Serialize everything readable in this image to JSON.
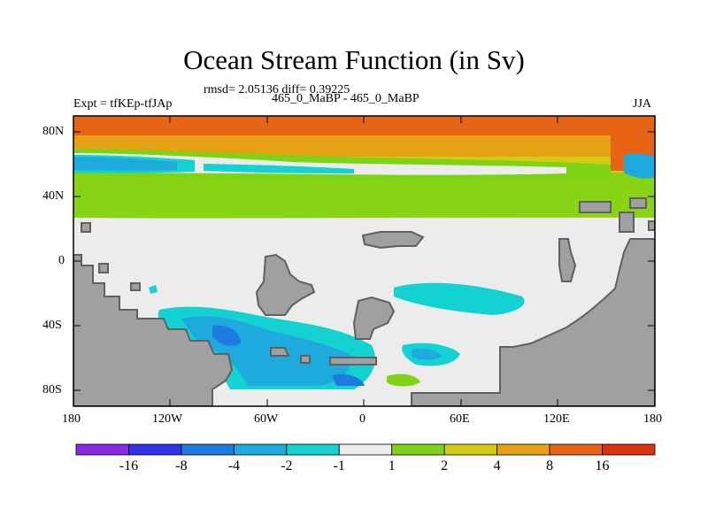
{
  "title": "Ocean Stream Function (in Sv)",
  "stats_text": "rmsd= 2.05136 diff= 0.39225",
  "left_label": "Expt = tfKEp-tfJAp",
  "center_label": "465_0_MaBP - 465_0_MaBP",
  "right_label": "JJA",
  "lat_ticks": [
    "80N",
    "40N",
    "0",
    "40S",
    "80S"
  ],
  "lon_ticks": [
    "180",
    "120W",
    "60W",
    "0",
    "60E",
    "120E",
    "180"
  ],
  "colorbar": {
    "labels": [
      "-16",
      "-8",
      "-4",
      "-2",
      "-1",
      "1",
      "2",
      "4",
      "8",
      "16"
    ],
    "colors": [
      "#8a2be2",
      "#3232e6",
      "#1e7adc",
      "#1eaadc",
      "#14d2d2",
      "#ececec",
      "#7ed414",
      "#d4cc14",
      "#e6a014",
      "#e66414",
      "#dc3214"
    ]
  }
}
